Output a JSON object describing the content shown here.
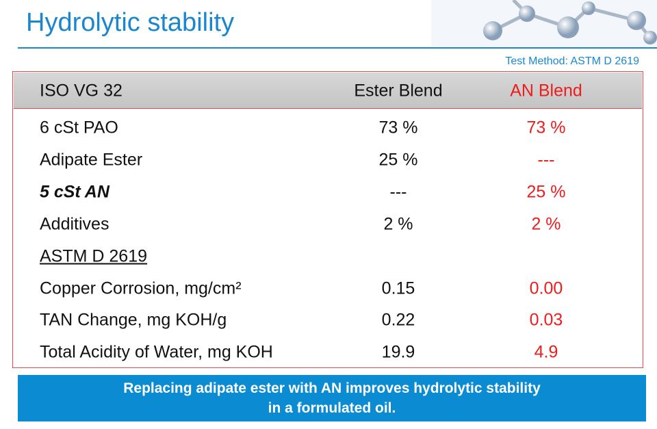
{
  "header": {
    "title": "Hydrolytic stability",
    "test_method": "Test Method:  ASTM D 2619"
  },
  "table": {
    "columns": [
      "ISO VG 32",
      "Ester Blend",
      "AN Blend"
    ],
    "rows": [
      [
        "6 cSt PAO",
        "73 %",
        "73 %"
      ],
      [
        "Adipate Ester",
        "25 %",
        "---"
      ],
      [
        "5 cSt AN",
        "---",
        "25 %"
      ],
      [
        "Additives",
        "2 %",
        "2 %"
      ],
      [
        "ASTM D 2619"
      ],
      [
        "Copper Corrosion, mg/cm²",
        "0.15",
        "0.00"
      ],
      [
        "TAN Change, mg KOH/g",
        "0.22",
        "0.03"
      ],
      [
        "Total Acidity of Water, mg KOH",
        "19.9",
        "4.9"
      ]
    ]
  },
  "banner": {
    "lines": [
      "Replacing adipate ester with AN improves hydrolytic stability",
      "in a formulated oil."
    ]
  }
}
